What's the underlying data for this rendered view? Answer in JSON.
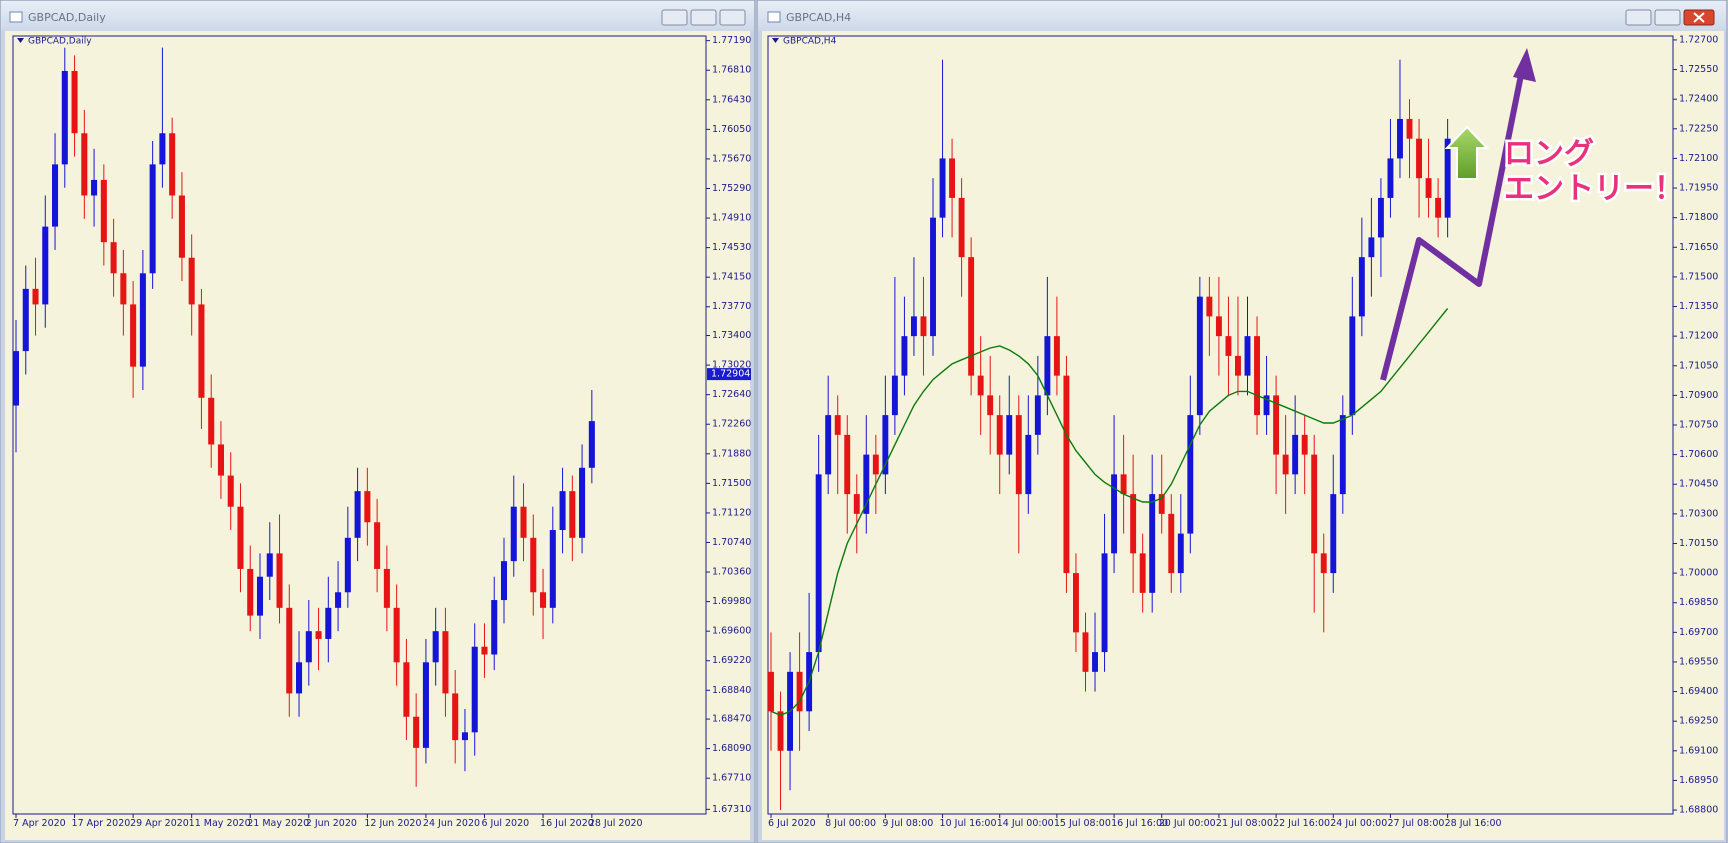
{
  "chart_data": [
    {
      "type": "candlestick",
      "title": "GBPCAD,Daily",
      "categories": [
        "7 Apr 2020",
        null,
        null,
        null,
        null,
        null,
        "17 Apr 2020",
        null,
        null,
        null,
        null,
        null,
        "29 Apr 2020",
        null,
        null,
        null,
        null,
        null,
        "11 May 2020",
        null,
        null,
        null,
        null,
        null,
        "21 May 2020",
        null,
        null,
        null,
        null,
        null,
        "2 Jun 2020",
        null,
        null,
        null,
        null,
        null,
        "12 Jun 2020",
        null,
        null,
        null,
        null,
        null,
        "24 Jun 2020",
        null,
        null,
        null,
        null,
        null,
        "6 Jul 2020",
        null,
        null,
        null,
        null,
        null,
        "16 Jul 2020",
        null,
        null,
        null,
        null,
        "28 Jul 2020"
      ],
      "ohlc": [
        [
          1.725,
          1.736,
          1.719,
          1.732
        ],
        [
          1.732,
          1.743,
          1.729,
          1.74
        ],
        [
          1.74,
          1.744,
          1.734,
          1.738
        ],
        [
          1.738,
          1.752,
          1.735,
          1.748
        ],
        [
          1.748,
          1.76,
          1.745,
          1.756
        ],
        [
          1.756,
          1.771,
          1.753,
          1.768
        ],
        [
          1.768,
          1.77,
          1.757,
          1.76
        ],
        [
          1.76,
          1.763,
          1.749,
          1.752
        ],
        [
          1.752,
          1.758,
          1.748,
          1.754
        ],
        [
          1.754,
          1.756,
          1.743,
          1.746
        ],
        [
          1.746,
          1.749,
          1.739,
          1.742
        ],
        [
          1.742,
          1.745,
          1.734,
          1.738
        ],
        [
          1.738,
          1.741,
          1.726,
          1.73
        ],
        [
          1.73,
          1.745,
          1.727,
          1.742
        ],
        [
          1.742,
          1.759,
          1.74,
          1.756
        ],
        [
          1.756,
          1.771,
          1.753,
          1.76
        ],
        [
          1.76,
          1.762,
          1.749,
          1.752
        ],
        [
          1.752,
          1.755,
          1.741,
          1.744
        ],
        [
          1.744,
          1.747,
          1.734,
          1.738
        ],
        [
          1.738,
          1.74,
          1.722,
          1.726
        ],
        [
          1.726,
          1.729,
          1.717,
          1.72
        ],
        [
          1.72,
          1.723,
          1.713,
          1.716
        ],
        [
          1.716,
          1.719,
          1.709,
          1.712
        ],
        [
          1.712,
          1.715,
          1.701,
          1.704
        ],
        [
          1.704,
          1.707,
          1.696,
          1.698
        ],
        [
          1.698,
          1.706,
          1.695,
          1.703
        ],
        [
          1.703,
          1.71,
          1.7,
          1.706
        ],
        [
          1.706,
          1.711,
          1.697,
          1.699
        ],
        [
          1.699,
          1.702,
          1.685,
          1.688
        ],
        [
          1.688,
          1.696,
          1.685,
          1.692
        ],
        [
          1.692,
          1.7,
          1.689,
          1.696
        ],
        [
          1.696,
          1.699,
          1.691,
          1.695
        ],
        [
          1.695,
          1.703,
          1.692,
          1.699
        ],
        [
          1.699,
          1.705,
          1.696,
          1.701
        ],
        [
          1.701,
          1.712,
          1.699,
          1.708
        ],
        [
          1.708,
          1.717,
          1.705,
          1.714
        ],
        [
          1.714,
          1.717,
          1.707,
          1.71
        ],
        [
          1.71,
          1.713,
          1.701,
          1.704
        ],
        [
          1.704,
          1.707,
          1.696,
          1.699
        ],
        [
          1.699,
          1.702,
          1.689,
          1.692
        ],
        [
          1.692,
          1.695,
          1.682,
          1.685
        ],
        [
          1.685,
          1.688,
          1.676,
          1.681
        ],
        [
          1.681,
          1.695,
          1.679,
          1.692
        ],
        [
          1.692,
          1.699,
          1.689,
          1.696
        ],
        [
          1.696,
          1.699,
          1.685,
          1.688
        ],
        [
          1.688,
          1.691,
          1.679,
          1.682
        ],
        [
          1.682,
          1.686,
          1.678,
          1.683
        ],
        [
          1.683,
          1.697,
          1.68,
          1.694
        ],
        [
          1.694,
          1.697,
          1.69,
          1.693
        ],
        [
          1.693,
          1.703,
          1.691,
          1.7
        ],
        [
          1.7,
          1.708,
          1.697,
          1.705
        ],
        [
          1.705,
          1.716,
          1.703,
          1.712
        ],
        [
          1.712,
          1.715,
          1.705,
          1.708
        ],
        [
          1.708,
          1.711,
          1.698,
          1.701
        ],
        [
          1.701,
          1.704,
          1.695,
          1.699
        ],
        [
          1.699,
          1.712,
          1.697,
          1.709
        ],
        [
          1.709,
          1.717,
          1.706,
          1.714
        ],
        [
          1.714,
          1.716,
          1.705,
          1.708
        ],
        [
          1.708,
          1.72,
          1.706,
          1.717
        ],
        [
          1.717,
          1.727,
          1.715,
          1.723
        ]
      ],
      "up_color": "#1515d8",
      "down_color": "#e61414",
      "ylim": [
        1.6725,
        1.7725
      ],
      "yticks": [
        {
          "value": 1.7719,
          "label": "1.77190"
        },
        {
          "value": 1.7681,
          "label": "1.76810"
        },
        {
          "value": 1.7643,
          "label": "1.76430"
        },
        {
          "value": 1.7605,
          "label": "1.76050"
        },
        {
          "value": 1.7567,
          "label": "1.75670"
        },
        {
          "value": 1.7529,
          "label": "1.75290"
        },
        {
          "value": 1.7491,
          "label": "1.74910"
        },
        {
          "value": 1.7453,
          "label": "1.74530"
        },
        {
          "value": 1.7415,
          "label": "1.74150"
        },
        {
          "value": 1.7377,
          "label": "1.73770"
        },
        {
          "value": 1.734,
          "label": "1.73400"
        },
        {
          "value": 1.7302,
          "label": "1.73020"
        },
        {
          "value": 1.7264,
          "label": "1.72640"
        },
        {
          "value": 1.7226,
          "label": "1.72260"
        },
        {
          "value": 1.7188,
          "label": "1.71880"
        },
        {
          "value": 1.715,
          "label": "1.71500"
        },
        {
          "value": 1.7112,
          "label": "1.71120"
        },
        {
          "value": 1.7074,
          "label": "1.70740"
        },
        {
          "value": 1.7036,
          "label": "1.70360"
        },
        {
          "value": 1.6998,
          "label": "1.69980"
        },
        {
          "value": 1.696,
          "label": "1.69600"
        },
        {
          "value": 1.6922,
          "label": "1.69220"
        },
        {
          "value": 1.6884,
          "label": "1.68840"
        },
        {
          "value": 1.6847,
          "label": "1.68470"
        },
        {
          "value": 1.6809,
          "label": "1.68090"
        },
        {
          "value": 1.6771,
          "label": "1.67710"
        },
        {
          "value": 1.6731,
          "label": "1.67310"
        }
      ],
      "last_price": 1.72904
    },
    {
      "type": "candlestick",
      "title": "GBPCAD,H4",
      "categories": [
        "6 Jul 2020",
        null,
        null,
        null,
        null,
        null,
        "8 Jul 00:00",
        null,
        null,
        null,
        null,
        null,
        "9 Jul 08:00",
        null,
        null,
        null,
        null,
        null,
        "10 Jul 16:00",
        null,
        null,
        null,
        null,
        null,
        "14 Jul 00:00",
        null,
        null,
        null,
        null,
        null,
        "15 Jul 08:00",
        null,
        null,
        null,
        null,
        null,
        "16 Jul 16:00",
        null,
        null,
        null,
        null,
        "20 Jul 00:00",
        null,
        null,
        null,
        null,
        null,
        "21 Jul 08:00",
        null,
        null,
        null,
        null,
        null,
        "22 Jul 16:00",
        null,
        null,
        null,
        null,
        null,
        "24 Jul 00:00",
        null,
        null,
        null,
        null,
        null,
        "27 Jul 08:00",
        null,
        null,
        null,
        null,
        null,
        "28 Jul 16:00"
      ],
      "ohlc": [
        [
          1.695,
          1.697,
          1.691,
          1.693
        ],
        [
          1.693,
          1.694,
          1.688,
          1.691
        ],
        [
          1.691,
          1.696,
          1.689,
          1.695
        ],
        [
          1.695,
          1.697,
          1.691,
          1.693
        ],
        [
          1.693,
          1.699,
          1.692,
          1.696
        ],
        [
          1.696,
          1.707,
          1.695,
          1.705
        ],
        [
          1.705,
          1.71,
          1.704,
          1.708
        ],
        [
          1.708,
          1.709,
          1.704,
          1.707
        ],
        [
          1.707,
          1.708,
          1.702,
          1.704
        ],
        [
          1.704,
          1.705,
          1.701,
          1.703
        ],
        [
          1.703,
          1.708,
          1.702,
          1.706
        ],
        [
          1.706,
          1.707,
          1.703,
          1.705
        ],
        [
          1.705,
          1.71,
          1.704,
          1.708
        ],
        [
          1.708,
          1.715,
          1.707,
          1.71
        ],
        [
          1.71,
          1.714,
          1.709,
          1.712
        ],
        [
          1.712,
          1.716,
          1.711,
          1.713
        ],
        [
          1.713,
          1.715,
          1.71,
          1.712
        ],
        [
          1.712,
          1.72,
          1.711,
          1.718
        ],
        [
          1.718,
          1.726,
          1.717,
          1.721
        ],
        [
          1.721,
          1.722,
          1.717,
          1.719
        ],
        [
          1.719,
          1.72,
          1.714,
          1.716
        ],
        [
          1.716,
          1.717,
          1.709,
          1.71
        ],
        [
          1.71,
          1.712,
          1.707,
          1.709
        ],
        [
          1.709,
          1.711,
          1.706,
          1.708
        ],
        [
          1.708,
          1.709,
          1.704,
          1.706
        ],
        [
          1.706,
          1.71,
          1.705,
          1.708
        ],
        [
          1.708,
          1.709,
          1.701,
          1.704
        ],
        [
          1.704,
          1.709,
          1.703,
          1.707
        ],
        [
          1.707,
          1.711,
          1.706,
          1.709
        ],
        [
          1.709,
          1.715,
          1.708,
          1.712
        ],
        [
          1.712,
          1.714,
          1.709,
          1.71
        ],
        [
          1.71,
          1.711,
          1.699,
          1.7
        ],
        [
          1.7,
          1.701,
          1.696,
          1.697
        ],
        [
          1.697,
          1.698,
          1.694,
          1.695
        ],
        [
          1.695,
          1.698,
          1.694,
          1.696
        ],
        [
          1.696,
          1.703,
          1.695,
          1.701
        ],
        [
          1.701,
          1.708,
          1.7,
          1.705
        ],
        [
          1.705,
          1.707,
          1.702,
          1.704
        ],
        [
          1.704,
          1.706,
          1.699,
          1.701
        ],
        [
          1.701,
          1.702,
          1.698,
          1.699
        ],
        [
          1.699,
          1.706,
          1.698,
          1.704
        ],
        [
          1.704,
          1.706,
          1.702,
          1.703
        ],
        [
          1.703,
          1.704,
          1.699,
          1.7
        ],
        [
          1.7,
          1.704,
          1.699,
          1.702
        ],
        [
          1.702,
          1.71,
          1.701,
          1.708
        ],
        [
          1.708,
          1.715,
          1.707,
          1.714
        ],
        [
          1.714,
          1.715,
          1.711,
          1.713
        ],
        [
          1.713,
          1.715,
          1.71,
          1.712
        ],
        [
          1.712,
          1.714,
          1.709,
          1.711
        ],
        [
          1.711,
          1.714,
          1.709,
          1.71
        ],
        [
          1.71,
          1.714,
          1.709,
          1.712
        ],
        [
          1.712,
          1.713,
          1.707,
          1.708
        ],
        [
          1.708,
          1.711,
          1.707,
          1.709
        ],
        [
          1.709,
          1.71,
          1.704,
          1.706
        ],
        [
          1.706,
          1.708,
          1.703,
          1.705
        ],
        [
          1.705,
          1.709,
          1.704,
          1.707
        ],
        [
          1.707,
          1.708,
          1.704,
          1.706
        ],
        [
          1.706,
          1.707,
          1.698,
          1.701
        ],
        [
          1.701,
          1.702,
          1.697,
          1.7
        ],
        [
          1.7,
          1.706,
          1.699,
          1.704
        ],
        [
          1.704,
          1.709,
          1.703,
          1.708
        ],
        [
          1.708,
          1.715,
          1.707,
          1.713
        ],
        [
          1.713,
          1.718,
          1.712,
          1.716
        ],
        [
          1.716,
          1.719,
          1.714,
          1.717
        ],
        [
          1.717,
          1.72,
          1.715,
          1.719
        ],
        [
          1.719,
          1.723,
          1.718,
          1.721
        ],
        [
          1.721,
          1.726,
          1.72,
          1.723
        ],
        [
          1.723,
          1.724,
          1.72,
          1.722
        ],
        [
          1.722,
          1.723,
          1.718,
          1.72
        ],
        [
          1.72,
          1.722,
          1.718,
          1.719
        ],
        [
          1.719,
          1.72,
          1.717,
          1.718
        ],
        [
          1.718,
          1.723,
          1.717,
          1.722
        ]
      ],
      "up_color": "#1515d8",
      "down_color": "#e61414",
      "line_values": [
        1.693,
        1.6928,
        1.693,
        1.6935,
        1.6945,
        1.696,
        1.698,
        1.7,
        1.7015,
        1.7025,
        1.7035,
        1.7045,
        1.7055,
        1.7065,
        1.7075,
        1.7085,
        1.7092,
        1.7098,
        1.7102,
        1.7106,
        1.7108,
        1.711,
        1.7112,
        1.7114,
        1.7115,
        1.7113,
        1.711,
        1.7106,
        1.71,
        1.709,
        1.708,
        1.707,
        1.7062,
        1.7056,
        1.705,
        1.7046,
        1.7043,
        1.704,
        1.7038,
        1.7036,
        1.7036,
        1.7038,
        1.7045,
        1.7055,
        1.7065,
        1.7075,
        1.7082,
        1.7086,
        1.709,
        1.7092,
        1.7092,
        1.709,
        1.7088,
        1.7086,
        1.7084,
        1.7082,
        1.708,
        1.7078,
        1.7076,
        1.7076,
        1.7078,
        1.708,
        1.7084,
        1.7088,
        1.7092,
        1.7098,
        1.7104,
        1.711,
        1.7116,
        1.7122,
        1.7128,
        1.7134
      ],
      "line_color": "#0c7a0c",
      "ylim": [
        1.6878,
        1.7272
      ],
      "yticks": [
        {
          "value": 1.727,
          "label": "1.72700"
        },
        {
          "value": 1.7255,
          "label": "1.72550"
        },
        {
          "value": 1.724,
          "label": "1.72400"
        },
        {
          "value": 1.7225,
          "label": "1.72250"
        },
        {
          "value": 1.721,
          "label": "1.72100"
        },
        {
          "value": 1.7195,
          "label": "1.71950"
        },
        {
          "value": 1.718,
          "label": "1.71800"
        },
        {
          "value": 1.7165,
          "label": "1.71650"
        },
        {
          "value": 1.715,
          "label": "1.71500"
        },
        {
          "value": 1.7135,
          "label": "1.71350"
        },
        {
          "value": 1.712,
          "label": "1.71200"
        },
        {
          "value": 1.7105,
          "label": "1.71050"
        },
        {
          "value": 1.709,
          "label": "1.70900"
        },
        {
          "value": 1.7075,
          "label": "1.70750"
        },
        {
          "value": 1.706,
          "label": "1.70600"
        },
        {
          "value": 1.7045,
          "label": "1.70450"
        },
        {
          "value": 1.703,
          "label": "1.70300"
        },
        {
          "value": 1.7015,
          "label": "1.70150"
        },
        {
          "value": 1.7,
          "label": "1.70000"
        },
        {
          "value": 1.6985,
          "label": "1.69850"
        },
        {
          "value": 1.697,
          "label": "1.69700"
        },
        {
          "value": 1.6955,
          "label": "1.69550"
        },
        {
          "value": 1.694,
          "label": "1.69400"
        },
        {
          "value": 1.6925,
          "label": "1.69250"
        },
        {
          "value": 1.691,
          "label": "1.69100"
        },
        {
          "value": 1.6895,
          "label": "1.68950"
        },
        {
          "value": 1.688,
          "label": "1.68800"
        }
      ],
      "annotations": [
        "ロング",
        "エントリー！"
      ]
    }
  ]
}
